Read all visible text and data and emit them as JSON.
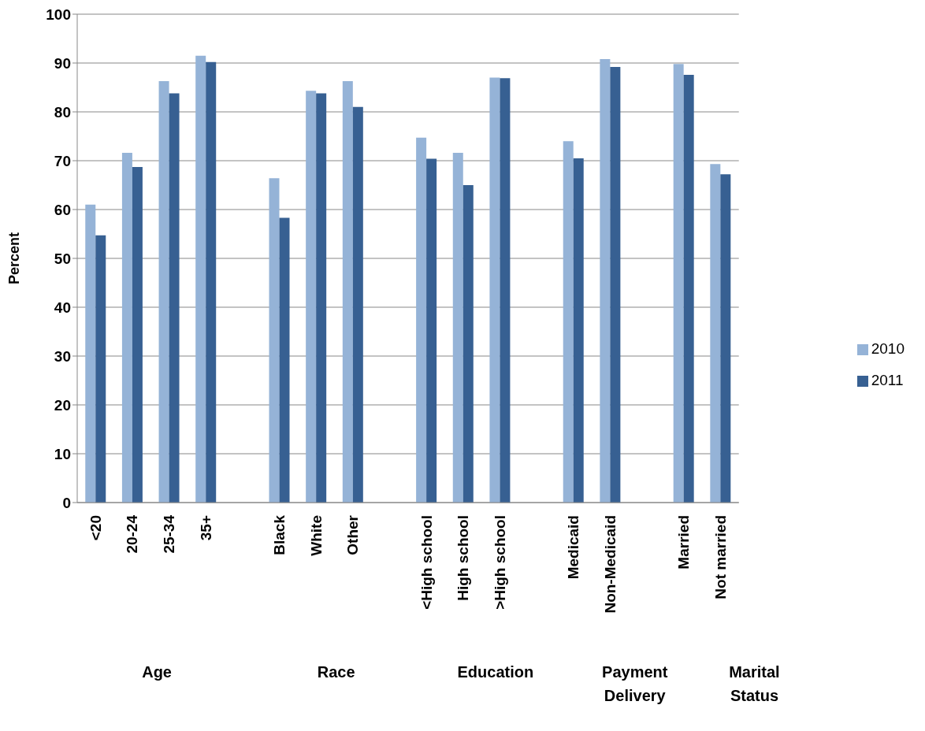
{
  "chart_data": {
    "type": "bar",
    "ylabel": "Percent",
    "categories": [
      "<20",
      "20-24",
      "25-34",
      "35+",
      null,
      "Black",
      "White",
      "Other",
      null,
      "<High school",
      "High school",
      ">High school",
      null,
      "Medicaid",
      "Non-Medicaid",
      null,
      "Married",
      "Not married"
    ],
    "series": [
      {
        "name": "2010",
        "color": "#95b3d7",
        "values": [
          61.0,
          71.6,
          86.3,
          91.5,
          null,
          66.4,
          84.3,
          86.3,
          null,
          74.7,
          71.6,
          87.0,
          null,
          74.0,
          90.8,
          null,
          89.8,
          69.3
        ]
      },
      {
        "name": "2011",
        "color": "#376092",
        "values": [
          54.7,
          68.7,
          83.8,
          90.2,
          null,
          58.3,
          83.8,
          81.0,
          null,
          70.4,
          65.0,
          86.9,
          null,
          70.5,
          89.2,
          null,
          87.6,
          67.2
        ]
      }
    ],
    "ylim": [
      0,
      100
    ],
    "yticks": [
      0,
      10,
      20,
      30,
      40,
      50,
      60,
      70,
      80,
      90,
      100
    ],
    "grid": "y",
    "legend": "right",
    "annotations": [
      "Age",
      "Race",
      "Education",
      "Payment Delivery",
      "Marital Status"
    ]
  }
}
